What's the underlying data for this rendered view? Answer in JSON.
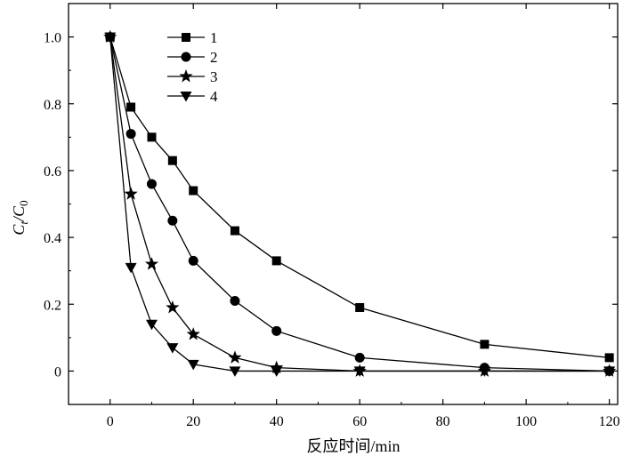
{
  "chart_data": {
    "type": "line",
    "xlabel": "反应时间/min",
    "ylabel": {
      "main": "C",
      "sub_t": "t",
      "slash": "/C",
      "sub_0": "0"
    },
    "xlim": [
      -10,
      122
    ],
    "ylim": [
      -0.1,
      1.1
    ],
    "xticks": [
      0,
      20,
      40,
      60,
      80,
      100,
      120
    ],
    "xtick_labels": [
      "0",
      "20",
      "40",
      "60",
      "80",
      "100",
      "120"
    ],
    "yticks": [
      0,
      0.2,
      0.4,
      0.6,
      0.8,
      1.0
    ],
    "ytick_labels": [
      "0",
      "0.2",
      "0.4",
      "0.6",
      "0.8",
      "1.0"
    ],
    "legend_position": "top-left",
    "series": [
      {
        "name": "1",
        "marker": "square",
        "x": [
          0,
          5,
          10,
          15,
          20,
          30,
          40,
          60,
          90,
          120
        ],
        "y": [
          1.0,
          0.79,
          0.7,
          0.63,
          0.54,
          0.42,
          0.33,
          0.19,
          0.08,
          0.04
        ]
      },
      {
        "name": "2",
        "marker": "circle",
        "x": [
          0,
          5,
          10,
          15,
          20,
          30,
          40,
          60,
          90,
          120
        ],
        "y": [
          1.0,
          0.71,
          0.56,
          0.45,
          0.33,
          0.21,
          0.12,
          0.04,
          0.01,
          0.0
        ]
      },
      {
        "name": "3",
        "marker": "star",
        "x": [
          0,
          5,
          10,
          15,
          20,
          30,
          40,
          60,
          90,
          120
        ],
        "y": [
          1.0,
          0.53,
          0.32,
          0.19,
          0.11,
          0.04,
          0.01,
          0.0,
          0.0,
          0.0
        ]
      },
      {
        "name": "4",
        "marker": "triangle-down",
        "x": [
          0,
          5,
          10,
          15,
          20,
          30,
          40,
          60,
          90,
          120
        ],
        "y": [
          1.0,
          0.31,
          0.14,
          0.07,
          0.02,
          0.0,
          0.0,
          0.0,
          0.0,
          0.0
        ]
      }
    ]
  }
}
